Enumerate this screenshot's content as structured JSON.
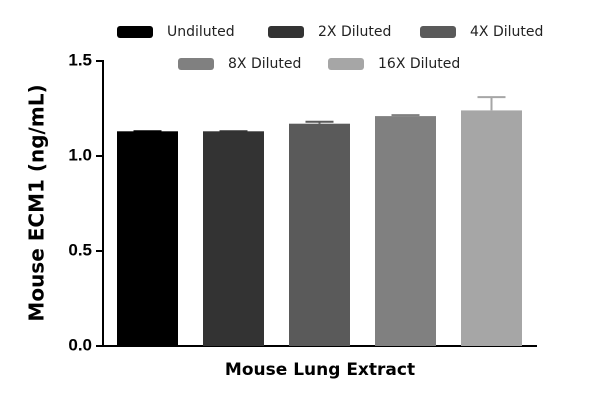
{
  "chart_data": {
    "type": "bar",
    "categories": [
      "Mouse Lung Extract"
    ],
    "y_label": "Mouse ECM1 (ng/mL)",
    "series": [
      {
        "name": "Undiluted",
        "color": "#000000",
        "values": [
          1.13
        ],
        "errors": [
          0
        ]
      },
      {
        "name": "2X Diluted",
        "color": "#333333",
        "values": [
          1.13
        ],
        "errors": [
          0
        ]
      },
      {
        "name": "4X Diluted",
        "color": "#5a5a5a",
        "values": [
          1.17
        ],
        "errors": [
          0.01
        ]
      },
      {
        "name": "8X Diluted",
        "color": "#808080",
        "values": [
          1.21
        ],
        "errors": [
          0.005
        ]
      },
      {
        "name": "16X Diluted",
        "color": "#a6a6a6",
        "values": [
          1.24
        ],
        "errors": [
          0.07
        ]
      }
    ],
    "ylim": [
      0,
      1.5
    ],
    "yticks": [
      {
        "value": 0,
        "label": "0.0"
      },
      0.5,
      {
        "value": 1,
        "label": "1.0"
      },
      1.5
    ]
  }
}
